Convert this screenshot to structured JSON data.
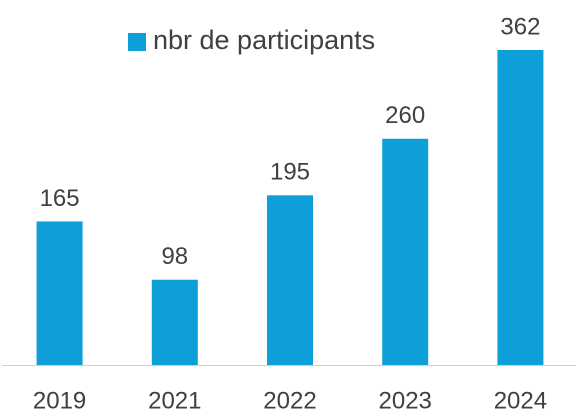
{
  "chart_data": {
    "type": "bar",
    "categories": [
      "2019",
      "2021",
      "2022",
      "2023",
      "2024"
    ],
    "series": [
      {
        "name": "nbr de participants",
        "color": "#0e9fd8",
        "values": [
          165,
          98,
          195,
          260,
          362
        ]
      }
    ],
    "legend": "top"
  }
}
